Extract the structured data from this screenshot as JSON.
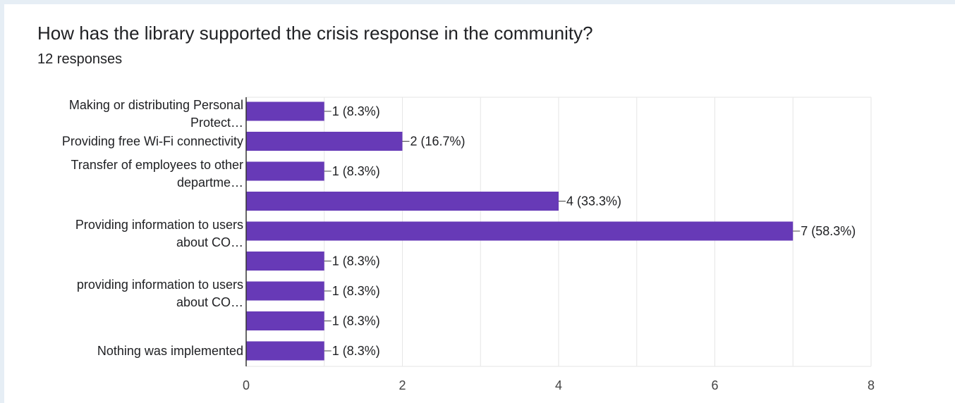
{
  "question": {
    "title": "How has the library supported the crisis response in the community?",
    "responses": "12 responses"
  },
  "colors": {
    "bar": "#673ab7",
    "axis": "#333333",
    "grid": "#e6e6e6",
    "text": "#202124"
  },
  "chart_data": {
    "type": "bar",
    "orientation": "horizontal",
    "categories": [
      [
        "Making or distributing Personal",
        "Protect…"
      ],
      [
        "Providing free Wi-Fi connectivity"
      ],
      [
        "Transfer of employees to other",
        "departme…"
      ],
      [],
      [
        "Providing information to users",
        "about CO…"
      ],
      [],
      [
        "providing information to users",
        "about CO…"
      ],
      [],
      [
        "Nothing was implemented"
      ]
    ],
    "values": [
      1,
      2,
      1,
      4,
      7,
      1,
      1,
      1,
      1
    ],
    "data_labels": [
      "1 (8.3%)",
      "2 (16.7%)",
      "1 (8.3%)",
      "4 (33.3%)",
      "7 (58.3%)",
      "1 (8.3%)",
      "1 (8.3%)",
      "1 (8.3%)",
      "1 (8.3%)"
    ],
    "xlim": [
      0,
      8
    ],
    "xticks": [
      0,
      2,
      4,
      6,
      8
    ],
    "grid": true,
    "legend": "none"
  }
}
